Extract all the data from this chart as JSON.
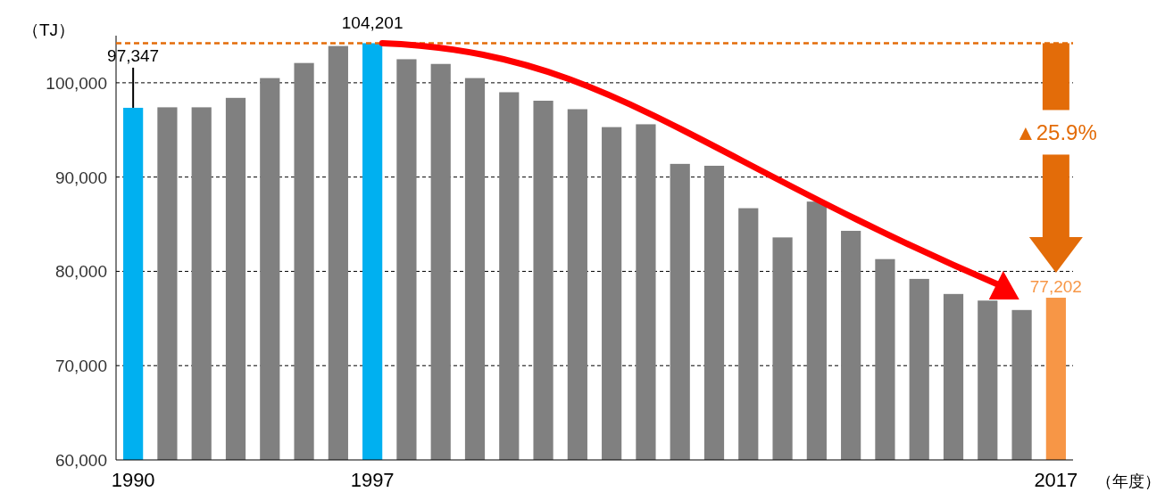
{
  "chart_data": {
    "type": "bar",
    "ylabel": "（TJ）",
    "xlabel": "（年度）",
    "categories": [
      "1990",
      null,
      null,
      null,
      null,
      null,
      null,
      "1997",
      null,
      null,
      null,
      null,
      null,
      null,
      null,
      null,
      null,
      null,
      null,
      null,
      null,
      null,
      null,
      null,
      null,
      null,
      null,
      "2017"
    ],
    "values": [
      97347,
      97400,
      97400,
      98400,
      100500,
      102100,
      103900,
      104201,
      102500,
      102000,
      100500,
      99000,
      98100,
      97200,
      95300,
      95600,
      91400,
      91200,
      86700,
      83600,
      87400,
      84300,
      81300,
      79200,
      77600,
      76900,
      75900,
      77202
    ],
    "colors": [
      "#00b0f0",
      "#808080",
      "#808080",
      "#808080",
      "#808080",
      "#808080",
      "#808080",
      "#00b0f0",
      "#808080",
      "#808080",
      "#808080",
      "#808080",
      "#808080",
      "#808080",
      "#808080",
      "#808080",
      "#808080",
      "#808080",
      "#808080",
      "#808080",
      "#808080",
      "#808080",
      "#808080",
      "#808080",
      "#808080",
      "#808080",
      "#808080",
      "#f79646"
    ],
    "value_labels": [
      "97,347",
      null,
      null,
      null,
      null,
      null,
      null,
      "104,201",
      null,
      null,
      null,
      null,
      null,
      null,
      null,
      null,
      null,
      null,
      null,
      null,
      null,
      null,
      null,
      null,
      null,
      null,
      null,
      "77,202"
    ],
    "ylim": [
      60000,
      105000
    ],
    "yticks": [
      {
        "value": 60000,
        "label": "60,000"
      },
      {
        "value": 70000,
        "label": "70,000"
      },
      {
        "value": 80000,
        "label": "80,000"
      },
      {
        "value": 90000,
        "label": "90,000"
      },
      {
        "value": 100000,
        "label": "100,000"
      }
    ],
    "grid": "y",
    "ref_lines": [
      {
        "axis": "y",
        "value": 104201,
        "color": "#e36c09",
        "line_style": "dashed"
      }
    ],
    "annotations": [
      "▲25.9%"
    ]
  }
}
